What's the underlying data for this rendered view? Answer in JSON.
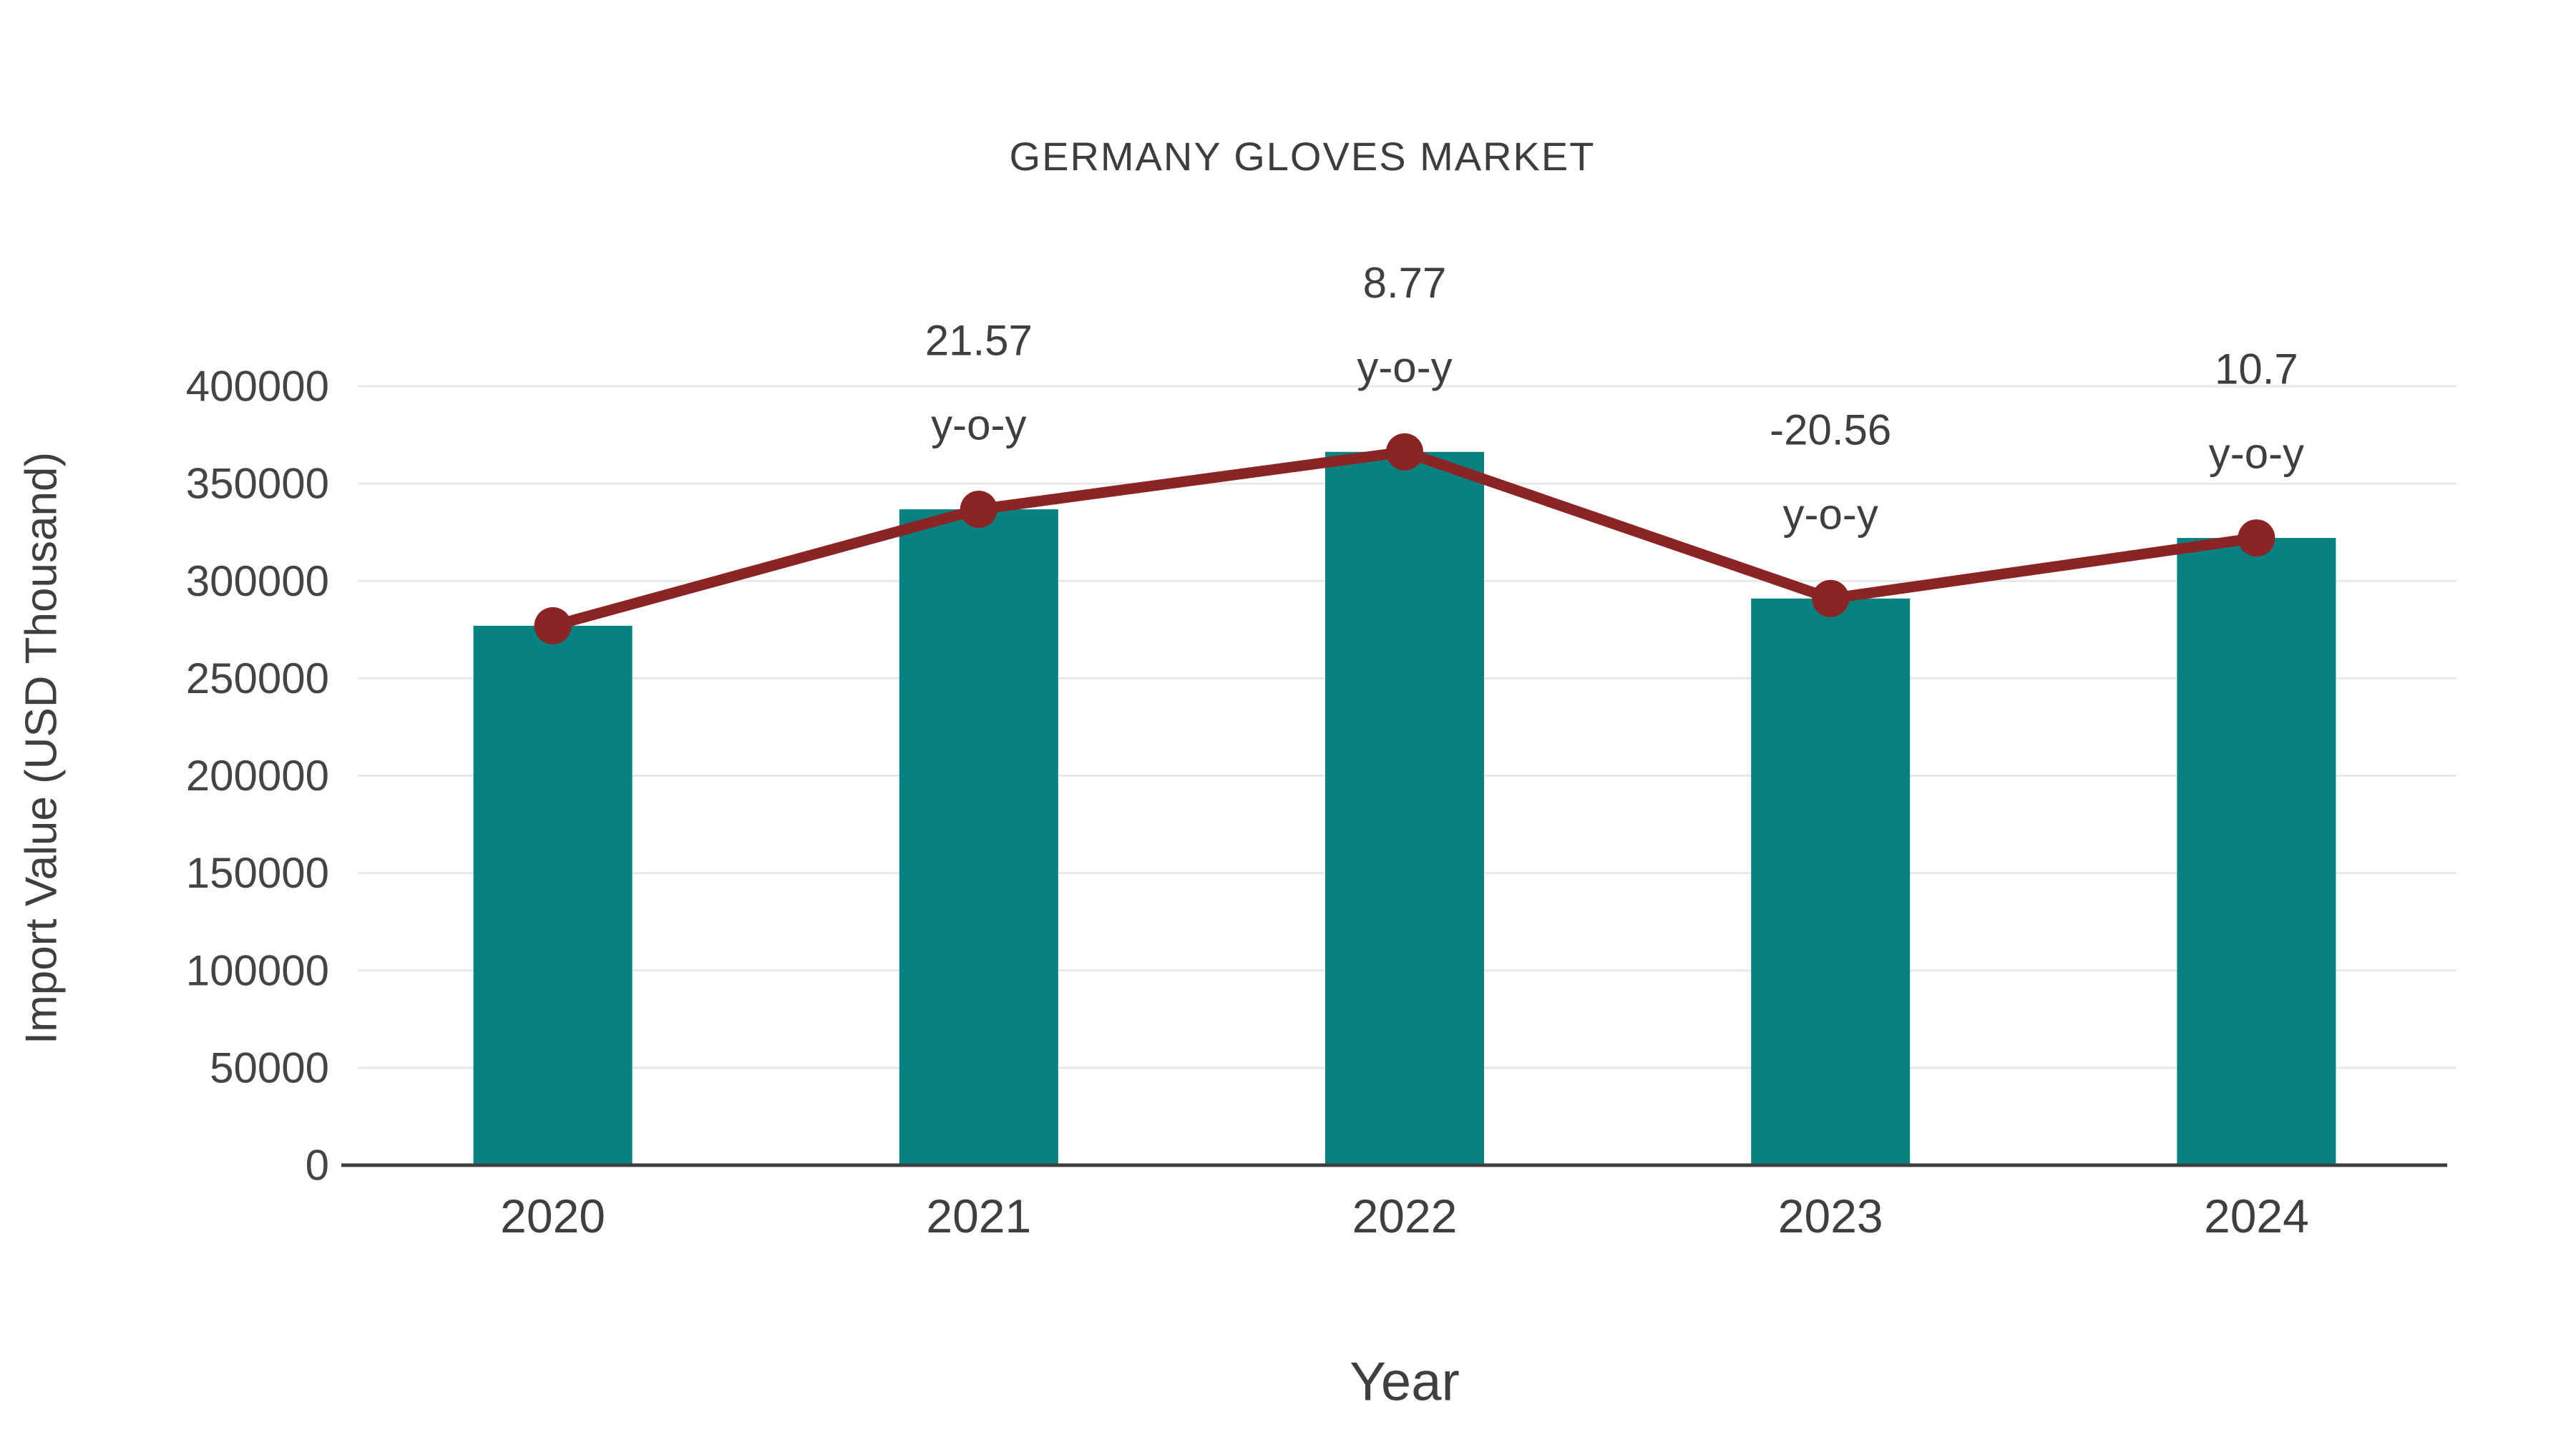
{
  "page": {
    "background": "#ffffff"
  },
  "chart_data": {
    "type": "bar",
    "title": "GERMANY GLOVES MARKET",
    "xlabel": "Year",
    "ylabel": "Import Value (USD Thousand)",
    "categories": [
      "2020",
      "2021",
      "2022",
      "2023",
      "2024"
    ],
    "series": [
      {
        "name": "Import Value",
        "type": "bar",
        "color": "#088181",
        "values": [
          277000,
          336800,
          366300,
          291000,
          322100
        ]
      },
      {
        "name": "y-o-y trend",
        "type": "line",
        "color": "#8B2424",
        "values": [
          277000,
          336800,
          366300,
          291000,
          322100
        ]
      }
    ],
    "annotations": [
      {
        "category": "2021",
        "value_text": "21.57",
        "label_text": "y-o-y"
      },
      {
        "category": "2022",
        "value_text": "8.77",
        "label_text": "y-o-y"
      },
      {
        "category": "2023",
        "value_text": "-20.56",
        "label_text": "y-o-y"
      },
      {
        "category": "2024",
        "value_text": "10.7",
        "label_text": "y-o-y"
      }
    ],
    "yticks": [
      0,
      50000,
      100000,
      150000,
      200000,
      250000,
      300000,
      350000,
      400000
    ],
    "ylim": [
      0,
      400000
    ],
    "grid": true,
    "legend": false,
    "colors": {
      "bar": "#088181",
      "line": "#8B2424",
      "marker": "#8B2424",
      "grid": "#e8e8e8",
      "axis": "#3f3f3f",
      "tick_label": "#444444",
      "annotation": "#3f3f3f",
      "title": "#3d3d3d"
    }
  }
}
